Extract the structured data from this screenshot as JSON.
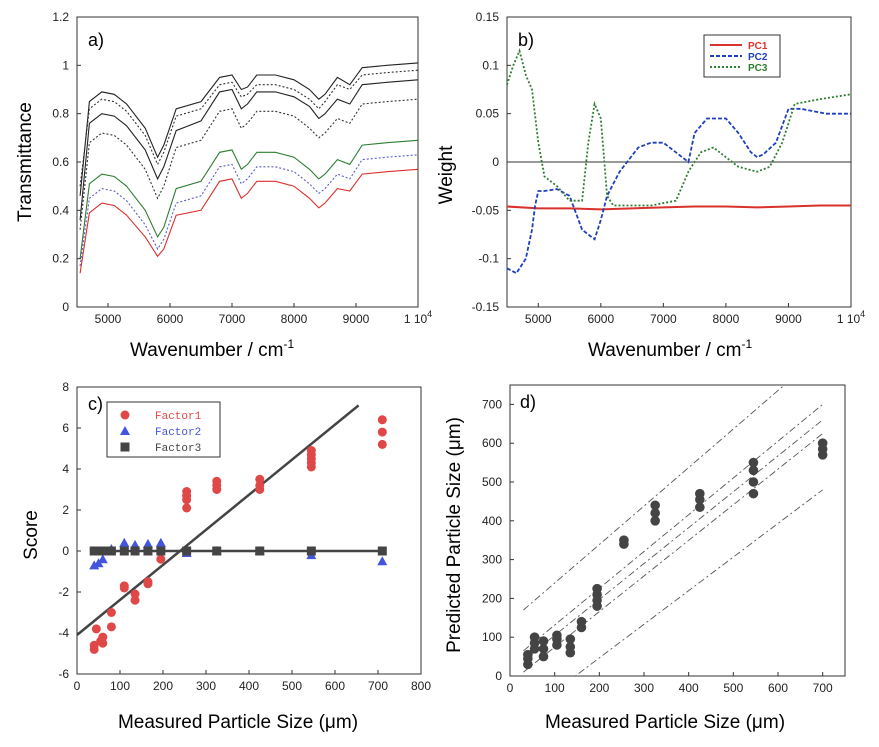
{
  "chart_data": [
    {
      "panel_label": "a)",
      "type": "line",
      "xlabel": "Wavenumber / cm",
      "xlabel_sup": "-1",
      "ylabel": "Transmittance",
      "xlim": [
        4500,
        10000
      ],
      "ylim": [
        0,
        1.2
      ],
      "x_ticks": [
        "5000",
        "6000",
        "7000",
        "8000",
        "9000",
        "1 10"
      ],
      "x_tick_sup": "4",
      "y_ticks": [
        "0",
        "0.2",
        "0.4",
        "0.6",
        "0.8",
        "1",
        "1.2"
      ],
      "x": [
        4550,
        4700,
        4900,
        5100,
        5300,
        5600,
        5800,
        5900,
        6100,
        6500,
        6650,
        6800,
        7000,
        7150,
        7250,
        7400,
        7700,
        8000,
        8250,
        8400,
        8500,
        8700,
        8900,
        9100,
        9500,
        10000
      ],
      "series": [
        {
          "color": "#222222",
          "style": "solid",
          "values": [
            0.46,
            0.85,
            0.89,
            0.88,
            0.84,
            0.74,
            0.62,
            0.67,
            0.82,
            0.85,
            0.9,
            0.95,
            0.96,
            0.9,
            0.91,
            0.96,
            0.96,
            0.94,
            0.9,
            0.86,
            0.88,
            0.95,
            0.92,
            0.99,
            1.0,
            1.01
          ]
        },
        {
          "color": "#222222",
          "style": "solid",
          "values": [
            0.36,
            0.76,
            0.8,
            0.79,
            0.75,
            0.65,
            0.53,
            0.58,
            0.73,
            0.77,
            0.83,
            0.89,
            0.9,
            0.82,
            0.84,
            0.89,
            0.89,
            0.87,
            0.83,
            0.78,
            0.8,
            0.86,
            0.84,
            0.92,
            0.93,
            0.94
          ]
        },
        {
          "color": "#333333",
          "style": "dotted",
          "values": [
            0.5,
            0.82,
            0.86,
            0.85,
            0.81,
            0.71,
            0.59,
            0.64,
            0.79,
            0.82,
            0.87,
            0.92,
            0.93,
            0.87,
            0.88,
            0.92,
            0.92,
            0.9,
            0.86,
            0.82,
            0.85,
            0.92,
            0.9,
            0.96,
            0.97,
            0.98
          ]
        },
        {
          "color": "#333333",
          "style": "dotted",
          "values": [
            0.32,
            0.68,
            0.72,
            0.71,
            0.67,
            0.57,
            0.45,
            0.5,
            0.66,
            0.69,
            0.75,
            0.81,
            0.82,
            0.74,
            0.76,
            0.81,
            0.81,
            0.79,
            0.74,
            0.7,
            0.72,
            0.78,
            0.76,
            0.84,
            0.85,
            0.86
          ]
        },
        {
          "color": "#2e7d32",
          "style": "solid",
          "values": [
            0.2,
            0.51,
            0.55,
            0.54,
            0.5,
            0.4,
            0.29,
            0.33,
            0.49,
            0.52,
            0.58,
            0.64,
            0.65,
            0.57,
            0.59,
            0.64,
            0.64,
            0.62,
            0.57,
            0.53,
            0.55,
            0.61,
            0.59,
            0.67,
            0.68,
            0.69
          ]
        },
        {
          "color": "#5a5ad0",
          "style": "dotted",
          "values": [
            0.17,
            0.45,
            0.49,
            0.48,
            0.44,
            0.34,
            0.24,
            0.28,
            0.43,
            0.46,
            0.52,
            0.58,
            0.59,
            0.51,
            0.53,
            0.58,
            0.58,
            0.56,
            0.51,
            0.47,
            0.49,
            0.55,
            0.53,
            0.61,
            0.62,
            0.63
          ]
        },
        {
          "color": "#d9312b",
          "style": "solid",
          "values": [
            0.14,
            0.39,
            0.43,
            0.42,
            0.38,
            0.29,
            0.21,
            0.24,
            0.38,
            0.4,
            0.46,
            0.52,
            0.53,
            0.45,
            0.47,
            0.52,
            0.52,
            0.5,
            0.45,
            0.41,
            0.43,
            0.49,
            0.48,
            0.55,
            0.56,
            0.57
          ]
        }
      ]
    },
    {
      "panel_label": "b)",
      "type": "line",
      "xlabel": "Wavenumber / cm",
      "xlabel_sup": "-1",
      "ylabel": "Weight",
      "xlim": [
        4500,
        10000
      ],
      "ylim": [
        -0.15,
        0.15
      ],
      "x_ticks": [
        "5000",
        "6000",
        "7000",
        "8000",
        "9000",
        "1 10"
      ],
      "x_tick_sup": "4",
      "y_ticks": [
        "-0.15",
        "-0.1",
        "-0.05",
        "0",
        "0.05",
        "0.1",
        "0.15"
      ],
      "zero_line": true,
      "legend_position": "top-right",
      "series": [
        {
          "name": "PC1",
          "color": "#d9312b",
          "style": "solid",
          "x": [
            4500,
            5000,
            5500,
            6000,
            6500,
            7000,
            7500,
            8000,
            8500,
            9000,
            9500,
            10000
          ],
          "values": [
            -0.046,
            -0.048,
            -0.048,
            -0.049,
            -0.048,
            -0.047,
            -0.046,
            -0.046,
            -0.047,
            -0.046,
            -0.045,
            -0.045
          ]
        },
        {
          "name": "PC2",
          "color": "#1f3fbf",
          "style": "dashed",
          "x": [
            4500,
            4650,
            4800,
            4900,
            4950,
            5000,
            5100,
            5300,
            5500,
            5700,
            5800,
            5900,
            6000,
            6100,
            6300,
            6600,
            6800,
            7000,
            7200,
            7400,
            7500,
            7700,
            8000,
            8200,
            8400,
            8500,
            8600,
            8800,
            9000,
            9200,
            9600,
            10000
          ],
          "values": [
            -0.11,
            -0.115,
            -0.1,
            -0.07,
            -0.045,
            -0.03,
            -0.03,
            -0.028,
            -0.035,
            -0.07,
            -0.075,
            -0.08,
            -0.06,
            -0.035,
            -0.01,
            0.015,
            0.02,
            0.02,
            0.01,
            0.0,
            0.03,
            0.045,
            0.045,
            0.03,
            0.01,
            0.005,
            0.008,
            0.02,
            0.055,
            0.055,
            0.05,
            0.05
          ]
        },
        {
          "name": "PC3",
          "color": "#2e7d32",
          "style": "dotted",
          "x": [
            4500,
            4600,
            4700,
            4800,
            4900,
            5000,
            5100,
            5300,
            5500,
            5700,
            5800,
            5900,
            6000,
            6100,
            6200,
            6400,
            6800,
            7200,
            7400,
            7600,
            7800,
            8000,
            8200,
            8500,
            8700,
            8900,
            9100,
            9500,
            10000
          ],
          "values": [
            0.08,
            0.1,
            0.115,
            0.09,
            0.075,
            0.02,
            -0.015,
            -0.025,
            -0.04,
            -0.04,
            0.02,
            0.06,
            0.045,
            -0.035,
            -0.045,
            -0.045,
            -0.045,
            -0.04,
            -0.01,
            0.01,
            0.015,
            0.005,
            -0.005,
            -0.01,
            -0.005,
            0.02,
            0.06,
            0.065,
            0.07
          ]
        }
      ]
    },
    {
      "panel_label": "c)",
      "type": "scatter",
      "xlabel": "Measured Particle Size (μm)",
      "ylabel": "Score",
      "xlim": [
        0,
        800
      ],
      "ylim": [
        -6,
        8
      ],
      "x_ticks": [
        "0",
        "100",
        "200",
        "300",
        "400",
        "500",
        "600",
        "700",
        "800"
      ],
      "y_ticks": [
        "-6",
        "-4",
        "-2",
        "0",
        "2",
        "4",
        "6",
        "8"
      ],
      "legend_position": "top-left",
      "regression_lines": [
        {
          "x": [
            0,
            655
          ],
          "values": [
            -4.1,
            7.1
          ],
          "color": "#444444"
        },
        {
          "x": [
            40,
            705
          ],
          "values": [
            0,
            0
          ],
          "color": "#444444"
        }
      ],
      "series": [
        {
          "name": "Factor1",
          "color": "#e04848",
          "marker": "circle",
          "x": [
            40,
            40,
            45,
            55,
            60,
            60,
            80,
            80,
            110,
            110,
            135,
            135,
            165,
            165,
            195,
            255,
            255,
            255,
            255,
            325,
            325,
            325,
            425,
            425,
            425,
            545,
            545,
            545,
            545,
            545,
            710,
            710,
            710
          ],
          "values": [
            -4.8,
            -4.6,
            -3.8,
            -4.4,
            -4.5,
            -4.2,
            -3.7,
            -3.0,
            -1.8,
            -1.7,
            -2.4,
            -2.1,
            -1.6,
            -1.5,
            -0.4,
            2.1,
            2.5,
            2.7,
            2.9,
            3.0,
            3.2,
            3.4,
            3.0,
            3.2,
            3.5,
            4.1,
            4.3,
            4.5,
            4.7,
            4.9,
            5.2,
            5.8,
            6.4
          ]
        },
        {
          "name": "Factor2",
          "color": "#4455dd",
          "marker": "triangle",
          "x": [
            40,
            50,
            60,
            80,
            110,
            135,
            165,
            195,
            255,
            325,
            425,
            545,
            710
          ],
          "values": [
            -0.7,
            -0.6,
            -0.4,
            0.1,
            0.4,
            0.3,
            0.35,
            0.4,
            -0.1,
            0.0,
            0.0,
            -0.2,
            -0.5
          ]
        },
        {
          "name": "Factor3",
          "color": "#444444",
          "marker": "square",
          "x": [
            40,
            55,
            70,
            80,
            110,
            135,
            165,
            195,
            255,
            325,
            425,
            545,
            710
          ],
          "values": [
            0,
            0,
            0,
            0,
            0,
            0,
            0,
            0,
            0,
            0,
            0,
            0,
            0
          ]
        }
      ]
    },
    {
      "panel_label": "d)",
      "type": "scatter",
      "xlabel": "Measured Particle Size (μm)",
      "ylabel": "Predicted Particle Size (μm)",
      "xlim": [
        0,
        750
      ],
      "ylim": [
        0,
        750
      ],
      "x_ticks": [
        "0",
        "100",
        "200",
        "300",
        "400",
        "500",
        "600",
        "700"
      ],
      "y_ticks": [
        "0",
        "100",
        "200",
        "300",
        "400",
        "500",
        "600",
        "700"
      ],
      "reference_lines": [
        {
          "x": [
            30,
            700
          ],
          "values": [
            170,
            835
          ],
          "style": "dashdot",
          "color": "#555555"
        },
        {
          "x": [
            30,
            700
          ],
          "values": [
            65,
            700
          ],
          "style": "dashdot",
          "color": "#555555"
        },
        {
          "x": [
            30,
            700
          ],
          "values": [
            40,
            660
          ],
          "style": "dashdot",
          "color": "#555555"
        },
        {
          "x": [
            30,
            700
          ],
          "values": [
            10,
            625
          ],
          "style": "dashdot",
          "color": "#555555"
        },
        {
          "x": [
            100,
            700
          ],
          "values": [
            -40,
            480
          ],
          "style": "dashdot",
          "color": "#555555"
        }
      ],
      "series": [
        {
          "color": "#444444",
          "marker": "circle",
          "x": [
            40,
            40,
            40,
            55,
            55,
            55,
            75,
            75,
            75,
            105,
            105,
            105,
            135,
            135,
            135,
            160,
            160,
            195,
            195,
            195,
            195,
            255,
            255,
            325,
            325,
            325,
            425,
            425,
            425,
            545,
            545,
            545,
            545,
            700,
            700,
            700
          ],
          "values": [
            30,
            45,
            55,
            70,
            85,
            100,
            50,
            70,
            90,
            80,
            95,
            105,
            60,
            75,
            95,
            125,
            140,
            180,
            195,
            210,
            225,
            340,
            350,
            400,
            420,
            440,
            435,
            455,
            470,
            470,
            500,
            530,
            550,
            570,
            585,
            600
          ]
        }
      ]
    }
  ]
}
